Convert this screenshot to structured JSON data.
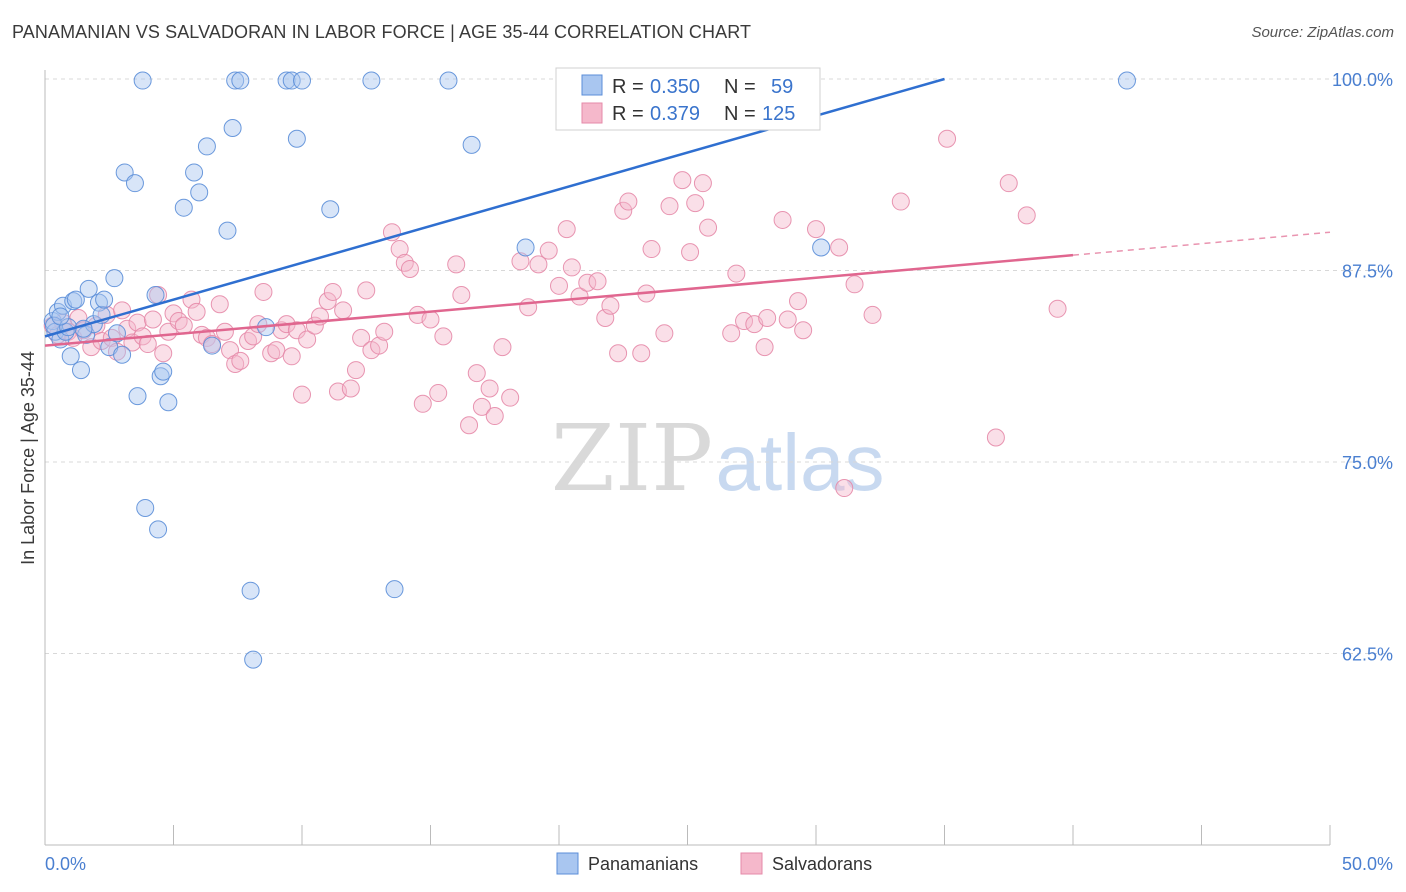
{
  "header": {
    "title": "PANAMANIAN VS SALVADORAN IN LABOR FORCE | AGE 35-44 CORRELATION CHART",
    "source": "Source: ZipAtlas.com"
  },
  "watermark": {
    "zip": "ZIP",
    "atlas": "atlas"
  },
  "colors": {
    "blue_fill": "#a9c6f0",
    "blue_stroke": "#5b8ed8",
    "blue_line": "#2f6fd0",
    "pink_fill": "#f5b8cb",
    "pink_stroke": "#e58aa8",
    "pink_line": "#e0668f",
    "tick_label": "#4a7fd0",
    "grid": "#d8d8d8"
  },
  "chart_data": {
    "type": "scatter",
    "title": "PANAMANIAN VS SALVADORAN IN LABOR FORCE | AGE 35-44 CORRELATION CHART",
    "xlabel": "",
    "ylabel": "In Labor Force | Age 35-44",
    "xlim": [
      0,
      50
    ],
    "ylim": [
      50,
      100
    ],
    "x_tick_labels": [
      "0.0%",
      "50.0%"
    ],
    "y_ticks": [
      100.0,
      87.5,
      75.0,
      62.5
    ],
    "y_tick_labels": [
      "100.0%",
      "87.5%",
      "75.0%",
      "62.5%"
    ],
    "legend": {
      "position": "top-center",
      "entries": [
        {
          "r_label": "R =",
          "r_value": "0.350",
          "n_label": "N =",
          "n_value": "59"
        },
        {
          "r_label": "R =",
          "r_value": "0.379",
          "n_label": "N =",
          "n_value": "125"
        }
      ]
    },
    "bottom_legend": [
      "Panamanians",
      "Salvadorans"
    ],
    "series": [
      {
        "name": "Panamanians",
        "color": "#5b8ed8",
        "trend": {
          "x0": 0.0,
          "y0": 83.2,
          "x1": 35.0,
          "y1": 100.0
        },
        "points": [
          [
            0.3,
            84.2
          ],
          [
            0.4,
            83.5
          ],
          [
            0.5,
            84.8
          ],
          [
            0.6,
            83.0
          ],
          [
            0.7,
            85.2
          ],
          [
            0.8,
            83.5
          ],
          [
            1.0,
            81.9
          ],
          [
            1.1,
            85.5
          ],
          [
            1.2,
            85.6
          ],
          [
            1.4,
            81.0
          ],
          [
            1.6,
            83.3
          ],
          [
            1.7,
            86.3
          ],
          [
            1.9,
            84.0
          ],
          [
            2.1,
            85.4
          ],
          [
            2.2,
            84.6
          ],
          [
            2.3,
            85.6
          ],
          [
            2.5,
            82.5
          ],
          [
            2.7,
            87.0
          ],
          [
            2.8,
            83.4
          ],
          [
            3.1,
            93.9
          ],
          [
            3.5,
            93.2
          ],
          [
            3.6,
            79.3
          ],
          [
            3.8,
            99.9
          ],
          [
            3.9,
            72.0
          ],
          [
            4.3,
            85.9
          ],
          [
            4.4,
            70.6
          ],
          [
            4.5,
            80.6
          ],
          [
            4.6,
            80.9
          ],
          [
            4.8,
            78.9
          ],
          [
            5.4,
            91.6
          ],
          [
            5.8,
            93.9
          ],
          [
            6.0,
            92.6
          ],
          [
            6.3,
            95.6
          ],
          [
            6.5,
            82.6
          ],
          [
            7.1,
            90.1
          ],
          [
            7.3,
            96.8
          ],
          [
            7.4,
            99.9
          ],
          [
            7.6,
            99.9
          ],
          [
            8.0,
            66.6
          ],
          [
            8.1,
            62.1
          ],
          [
            8.6,
            83.8
          ],
          [
            9.4,
            99.9
          ],
          [
            9.6,
            99.9
          ],
          [
            9.8,
            96.1
          ],
          [
            10.0,
            99.9
          ],
          [
            11.1,
            91.5
          ],
          [
            12.7,
            99.9
          ],
          [
            13.6,
            66.7
          ],
          [
            15.7,
            99.9
          ],
          [
            16.6,
            95.7
          ],
          [
            18.7,
            89.0
          ],
          [
            23.0,
            100.0
          ],
          [
            30.2,
            89.0
          ],
          [
            42.1,
            99.9
          ],
          [
            0.35,
            83.9
          ],
          [
            0.9,
            83.8
          ],
          [
            1.5,
            83.7
          ],
          [
            3.0,
            82.0
          ],
          [
            0.6,
            84.5
          ]
        ]
      },
      {
        "name": "Salvadorans",
        "color": "#e58aa8",
        "trend": {
          "x0": 0.0,
          "y0": 82.6,
          "x1": 40.0,
          "y1": 88.5
        },
        "trend_ext": {
          "x0": 40.0,
          "y0": 88.5,
          "x1": 50.0,
          "y1": 90.0
        },
        "points": [
          [
            0.3,
            83.9
          ],
          [
            0.5,
            83.3
          ],
          [
            0.7,
            84.1
          ],
          [
            0.9,
            83.5
          ],
          [
            1.1,
            83.1
          ],
          [
            1.3,
            84.4
          ],
          [
            1.5,
            83.6
          ],
          [
            1.8,
            82.5
          ],
          [
            2.0,
            83.9
          ],
          [
            2.2,
            82.9
          ],
          [
            2.4,
            84.6
          ],
          [
            2.6,
            83.1
          ],
          [
            2.8,
            82.2
          ],
          [
            3.0,
            84.9
          ],
          [
            3.2,
            83.7
          ],
          [
            3.4,
            82.8
          ],
          [
            3.6,
            84.1
          ],
          [
            3.8,
            83.2
          ],
          [
            4.0,
            82.7
          ],
          [
            4.2,
            84.3
          ],
          [
            4.4,
            85.9
          ],
          [
            4.6,
            82.1
          ],
          [
            4.8,
            83.5
          ],
          [
            5.0,
            84.7
          ],
          [
            5.2,
            84.2
          ],
          [
            5.4,
            83.9
          ],
          [
            5.7,
            85.6
          ],
          [
            5.9,
            84.8
          ],
          [
            6.1,
            83.3
          ],
          [
            6.3,
            83.1
          ],
          [
            6.5,
            82.7
          ],
          [
            6.8,
            85.3
          ],
          [
            7.0,
            83.5
          ],
          [
            7.2,
            82.3
          ],
          [
            7.4,
            81.4
          ],
          [
            7.6,
            81.6
          ],
          [
            7.9,
            82.9
          ],
          [
            8.1,
            83.2
          ],
          [
            8.3,
            84.0
          ],
          [
            8.5,
            86.1
          ],
          [
            8.8,
            82.1
          ],
          [
            9.0,
            82.3
          ],
          [
            9.2,
            83.6
          ],
          [
            9.4,
            84.0
          ],
          [
            9.6,
            81.9
          ],
          [
            9.8,
            83.6
          ],
          [
            10.0,
            79.4
          ],
          [
            10.2,
            83.0
          ],
          [
            10.5,
            83.9
          ],
          [
            10.7,
            84.5
          ],
          [
            11.0,
            85.5
          ],
          [
            11.2,
            86.1
          ],
          [
            11.4,
            79.6
          ],
          [
            11.6,
            84.9
          ],
          [
            11.9,
            79.8
          ],
          [
            12.1,
            81.0
          ],
          [
            12.3,
            83.1
          ],
          [
            12.5,
            86.2
          ],
          [
            12.7,
            82.3
          ],
          [
            13.0,
            82.6
          ],
          [
            13.2,
            83.5
          ],
          [
            13.5,
            90.0
          ],
          [
            13.8,
            88.9
          ],
          [
            14.0,
            88.0
          ],
          [
            14.2,
            87.6
          ],
          [
            14.5,
            84.6
          ],
          [
            14.7,
            78.8
          ],
          [
            15.0,
            84.3
          ],
          [
            15.3,
            79.5
          ],
          [
            15.5,
            83.2
          ],
          [
            16.0,
            87.9
          ],
          [
            16.2,
            85.9
          ],
          [
            16.5,
            77.4
          ],
          [
            16.8,
            80.8
          ],
          [
            17.0,
            78.6
          ],
          [
            17.3,
            79.8
          ],
          [
            17.5,
            78.0
          ],
          [
            17.8,
            82.5
          ],
          [
            18.1,
            79.2
          ],
          [
            18.5,
            88.1
          ],
          [
            18.8,
            85.1
          ],
          [
            19.2,
            87.9
          ],
          [
            19.6,
            88.8
          ],
          [
            20.0,
            86.5
          ],
          [
            20.3,
            90.2
          ],
          [
            20.5,
            87.7
          ],
          [
            20.8,
            85.8
          ],
          [
            21.1,
            86.7
          ],
          [
            21.5,
            86.8
          ],
          [
            21.8,
            84.4
          ],
          [
            22.0,
            85.2
          ],
          [
            22.3,
            82.1
          ],
          [
            22.5,
            91.4
          ],
          [
            22.7,
            92.0
          ],
          [
            23.2,
            82.1
          ],
          [
            23.4,
            86.0
          ],
          [
            23.6,
            88.9
          ],
          [
            24.1,
            83.4
          ],
          [
            24.3,
            91.7
          ],
          [
            24.8,
            93.4
          ],
          [
            25.1,
            88.7
          ],
          [
            25.3,
            91.9
          ],
          [
            25.6,
            93.2
          ],
          [
            25.8,
            90.3
          ],
          [
            26.7,
            83.4
          ],
          [
            26.9,
            87.3
          ],
          [
            27.2,
            84.2
          ],
          [
            27.6,
            84.0
          ],
          [
            28.0,
            82.5
          ],
          [
            28.1,
            84.4
          ],
          [
            28.7,
            90.8
          ],
          [
            28.9,
            84.3
          ],
          [
            29.3,
            85.5
          ],
          [
            29.5,
            83.6
          ],
          [
            30.0,
            90.2
          ],
          [
            30.9,
            89.0
          ],
          [
            31.1,
            73.3
          ],
          [
            31.5,
            86.6
          ],
          [
            32.2,
            84.6
          ],
          [
            33.3,
            92.0
          ],
          [
            35.1,
            96.1
          ],
          [
            37.0,
            76.6
          ],
          [
            37.5,
            93.2
          ],
          [
            38.2,
            91.1
          ],
          [
            39.4,
            85.0
          ]
        ]
      }
    ]
  }
}
